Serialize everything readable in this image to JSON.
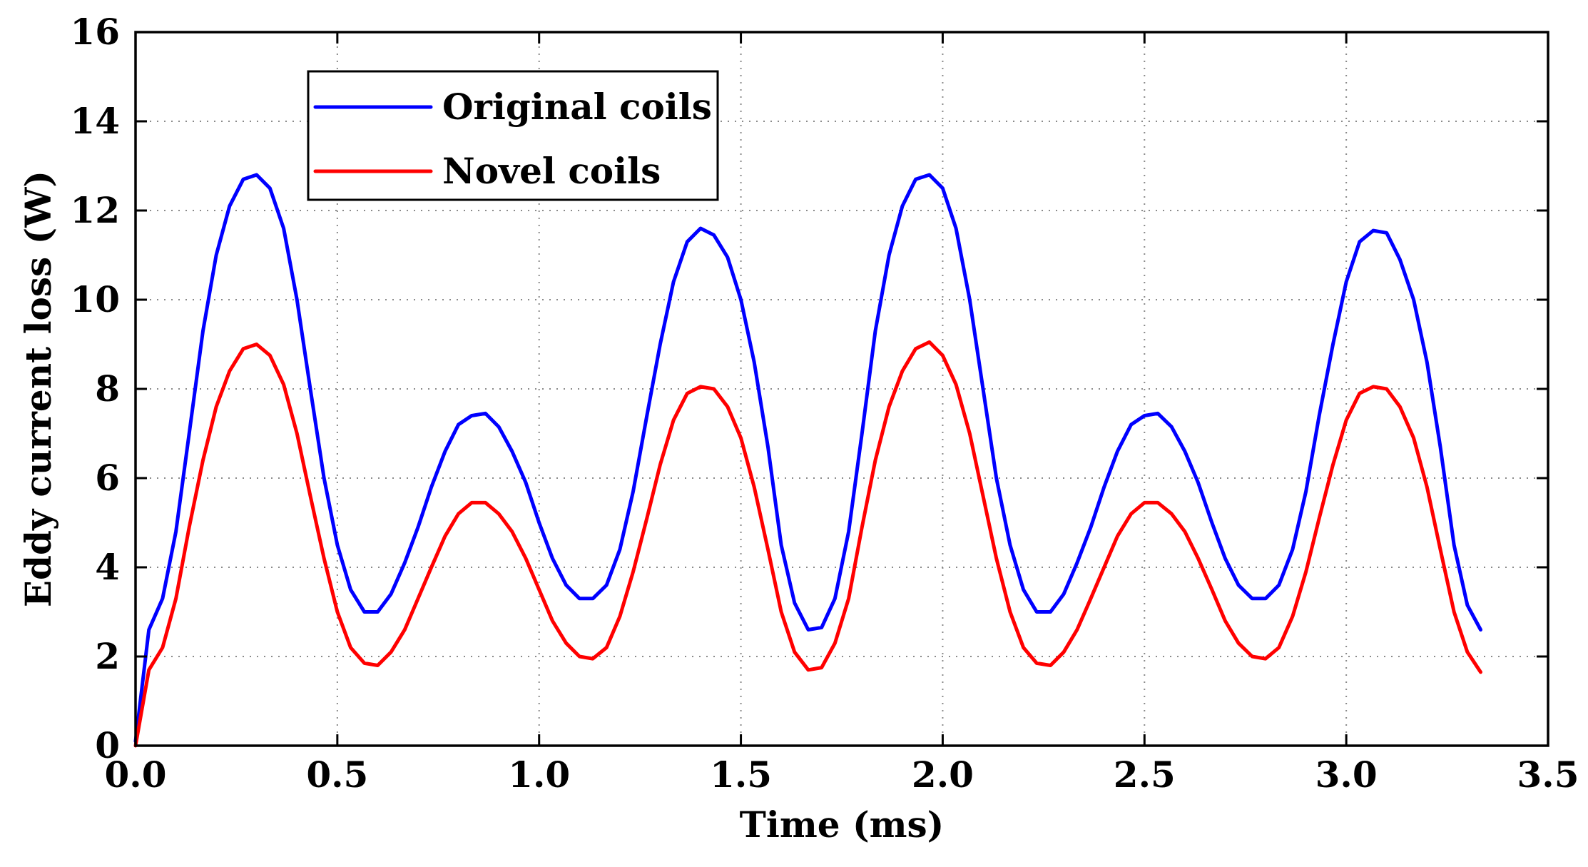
{
  "chart_data": {
    "type": "line",
    "title": "",
    "xlabel": "Time (ms)",
    "ylabel": "Eddy current loss (W)",
    "xlim": [
      0,
      3.5
    ],
    "ylim": [
      0,
      16
    ],
    "grid": true,
    "legend_position": "top-left",
    "x_ticks": [
      {
        "value": 0.0,
        "label": "0.0"
      },
      {
        "value": 0.5,
        "label": "0.5"
      },
      {
        "value": 1.0,
        "label": "1.0"
      },
      {
        "value": 1.5,
        "label": "1.5"
      },
      {
        "value": 2.0,
        "label": "2.0"
      },
      {
        "value": 2.5,
        "label": "2.5"
      },
      {
        "value": 3.0,
        "label": "3.0"
      },
      {
        "value": 3.5,
        "label": "3.5"
      }
    ],
    "y_ticks": [
      {
        "value": 0,
        "label": "0"
      },
      {
        "value": 2,
        "label": "2"
      },
      {
        "value": 4,
        "label": "4"
      },
      {
        "value": 6,
        "label": "6"
      },
      {
        "value": 8,
        "label": "8"
      },
      {
        "value": 10,
        "label": "10"
      },
      {
        "value": 12,
        "label": "12"
      },
      {
        "value": 14,
        "label": "14"
      },
      {
        "value": 16,
        "label": "16"
      }
    ],
    "series": [
      {
        "name": "Original coils",
        "color": "#0000ff",
        "x": [
          0.0,
          0.033,
          0.067,
          0.1,
          0.133,
          0.167,
          0.2,
          0.233,
          0.267,
          0.3,
          0.333,
          0.367,
          0.4,
          0.433,
          0.467,
          0.5,
          0.533,
          0.567,
          0.6,
          0.633,
          0.667,
          0.7,
          0.733,
          0.767,
          0.8,
          0.833,
          0.867,
          0.9,
          0.933,
          0.967,
          1.0,
          1.033,
          1.067,
          1.1,
          1.133,
          1.167,
          1.2,
          1.233,
          1.267,
          1.3,
          1.333,
          1.367,
          1.4,
          1.433,
          1.467,
          1.5,
          1.533,
          1.567,
          1.6,
          1.633,
          1.667,
          1.7,
          1.733,
          1.767,
          1.8,
          1.833,
          1.867,
          1.9,
          1.933,
          1.967,
          2.0,
          2.033,
          2.067,
          2.1,
          2.133,
          2.167,
          2.2,
          2.233,
          2.267,
          2.3,
          2.333,
          2.367,
          2.4,
          2.433,
          2.467,
          2.5,
          2.533,
          2.567,
          2.6,
          2.633,
          2.667,
          2.7,
          2.733,
          2.767,
          2.8,
          2.833,
          2.867,
          2.9,
          2.933,
          2.967,
          3.0,
          3.033,
          3.067,
          3.1,
          3.133,
          3.167,
          3.2,
          3.233,
          3.267,
          3.3,
          3.333
        ],
        "values": [
          0.1,
          2.6,
          3.3,
          4.8,
          7.0,
          9.3,
          11.0,
          12.1,
          12.7,
          12.8,
          12.5,
          11.6,
          10.0,
          8.0,
          6.0,
          4.5,
          3.5,
          3.0,
          3.0,
          3.4,
          4.1,
          4.9,
          5.8,
          6.6,
          7.2,
          7.4,
          7.45,
          7.15,
          6.6,
          5.9,
          5.0,
          4.2,
          3.6,
          3.3,
          3.3,
          3.6,
          4.4,
          5.7,
          7.4,
          9.0,
          10.4,
          11.3,
          11.6,
          11.45,
          10.95,
          10.0,
          8.6,
          6.7,
          4.5,
          3.2,
          2.6,
          2.65,
          3.3,
          4.8,
          7.0,
          9.3,
          11.0,
          12.1,
          12.7,
          12.8,
          12.5,
          11.6,
          10.0,
          8.0,
          6.0,
          4.5,
          3.5,
          3.0,
          3.0,
          3.4,
          4.1,
          4.9,
          5.8,
          6.6,
          7.2,
          7.4,
          7.45,
          7.15,
          6.6,
          5.9,
          5.0,
          4.2,
          3.6,
          3.3,
          3.3,
          3.6,
          4.4,
          5.7,
          7.4,
          9.0,
          10.4,
          11.3,
          11.55,
          11.5,
          10.9,
          10.0,
          8.6,
          6.7,
          4.5,
          3.15,
          2.6
        ]
      },
      {
        "name": "Novel coils",
        "color": "#ff0000",
        "x": [
          0.0,
          0.033,
          0.067,
          0.1,
          0.133,
          0.167,
          0.2,
          0.233,
          0.267,
          0.3,
          0.333,
          0.367,
          0.4,
          0.433,
          0.467,
          0.5,
          0.533,
          0.567,
          0.6,
          0.633,
          0.667,
          0.7,
          0.733,
          0.767,
          0.8,
          0.833,
          0.867,
          0.9,
          0.933,
          0.967,
          1.0,
          1.033,
          1.067,
          1.1,
          1.133,
          1.167,
          1.2,
          1.233,
          1.267,
          1.3,
          1.333,
          1.367,
          1.4,
          1.433,
          1.467,
          1.5,
          1.533,
          1.567,
          1.6,
          1.633,
          1.667,
          1.7,
          1.733,
          1.767,
          1.8,
          1.833,
          1.867,
          1.9,
          1.933,
          1.967,
          2.0,
          2.033,
          2.067,
          2.1,
          2.133,
          2.167,
          2.2,
          2.233,
          2.267,
          2.3,
          2.333,
          2.367,
          2.4,
          2.433,
          2.467,
          2.5,
          2.533,
          2.567,
          2.6,
          2.633,
          2.667,
          2.7,
          2.733,
          2.767,
          2.8,
          2.833,
          2.867,
          2.9,
          2.933,
          2.967,
          3.0,
          3.033,
          3.067,
          3.1,
          3.133,
          3.167,
          3.2,
          3.233,
          3.267,
          3.3,
          3.333
        ],
        "values": [
          0.0,
          1.7,
          2.2,
          3.3,
          4.9,
          6.4,
          7.6,
          8.4,
          8.9,
          9.0,
          8.75,
          8.1,
          7.0,
          5.6,
          4.2,
          3.0,
          2.2,
          1.85,
          1.8,
          2.1,
          2.6,
          3.3,
          4.0,
          4.7,
          5.2,
          5.45,
          5.45,
          5.2,
          4.8,
          4.2,
          3.5,
          2.8,
          2.3,
          2.0,
          1.95,
          2.2,
          2.9,
          3.9,
          5.1,
          6.3,
          7.3,
          7.9,
          8.05,
          8.0,
          7.6,
          6.9,
          5.8,
          4.4,
          3.0,
          2.1,
          1.7,
          1.75,
          2.3,
          3.3,
          4.9,
          6.4,
          7.6,
          8.4,
          8.9,
          9.05,
          8.75,
          8.1,
          7.0,
          5.6,
          4.2,
          3.0,
          2.2,
          1.85,
          1.8,
          2.1,
          2.6,
          3.3,
          4.0,
          4.7,
          5.2,
          5.45,
          5.45,
          5.2,
          4.8,
          4.2,
          3.5,
          2.8,
          2.3,
          2.0,
          1.95,
          2.2,
          2.9,
          3.9,
          5.1,
          6.3,
          7.3,
          7.9,
          8.05,
          8.0,
          7.6,
          6.9,
          5.8,
          4.4,
          3.0,
          2.1,
          1.65
        ]
      }
    ]
  }
}
